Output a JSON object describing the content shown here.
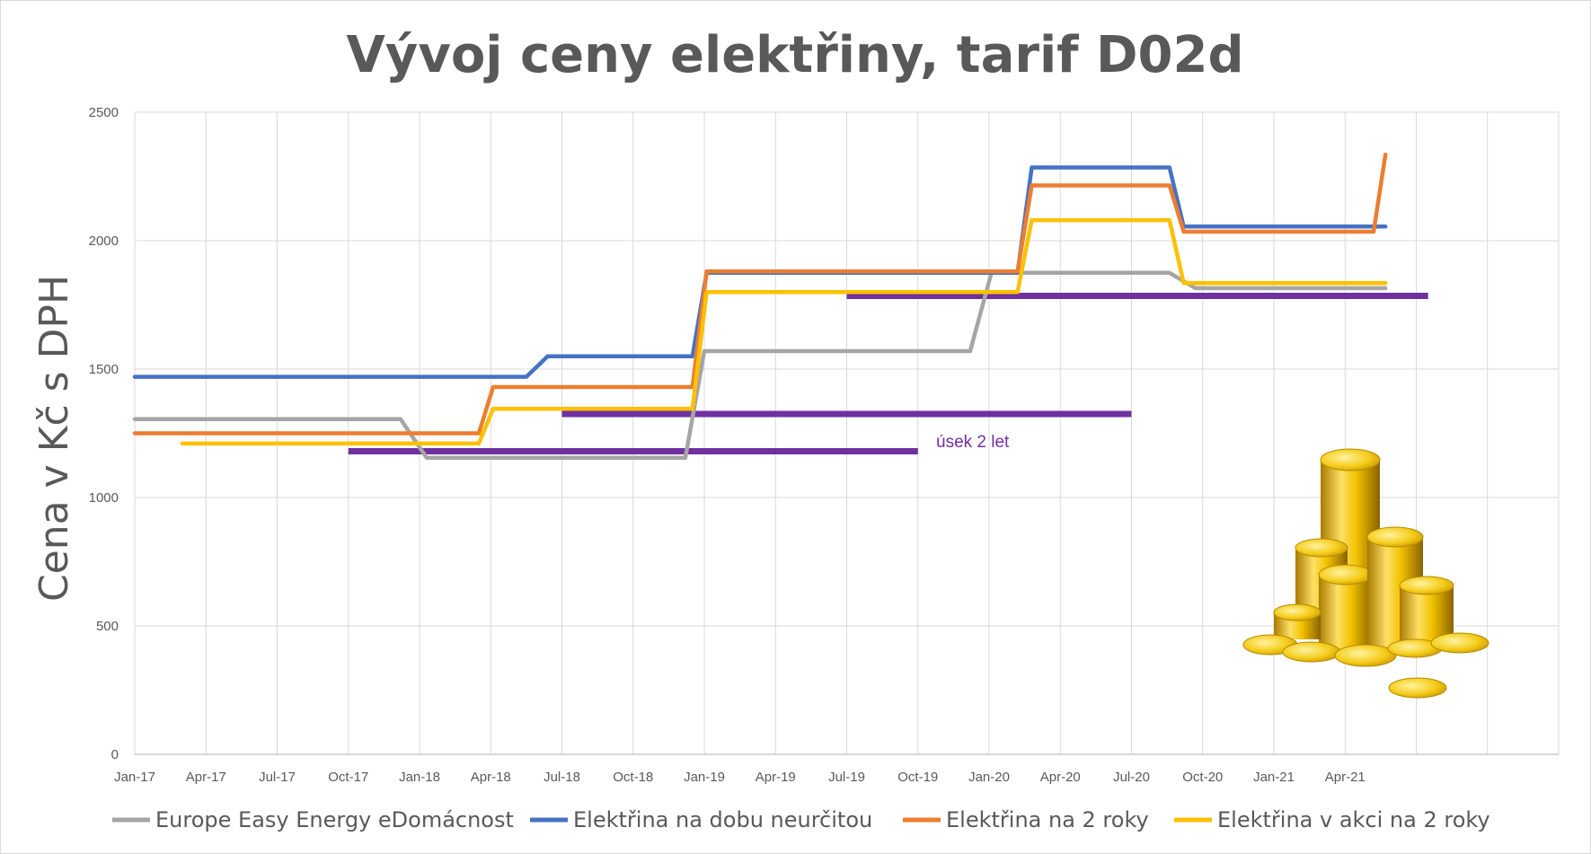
{
  "chart_data": {
    "type": "line",
    "title": "Vývoj ceny elektřiny, tarif D02d",
    "xlabel": "",
    "ylabel": "Cena v Kč s DPH",
    "ylim": [
      0,
      2500
    ],
    "yticks": [
      0,
      500,
      1000,
      1500,
      2000,
      2500
    ],
    "x_range_months": [
      0,
      60
    ],
    "xtick_labels": [
      "Jan-17",
      "Apr-17",
      "Jul-17",
      "Oct-17",
      "Jan-18",
      "Apr-18",
      "Jul-18",
      "Oct-18",
      "Jan-19",
      "Apr-19",
      "Jul-19",
      "Oct-19",
      "Jan-20",
      "Apr-20",
      "Jul-20",
      "Oct-20",
      "Jan-21",
      "Apr-21"
    ],
    "legend_position": "bottom",
    "grid": true,
    "series": [
      {
        "name": "Europe Easy Energy eDomácnost",
        "color": "#a5a5a5",
        "points": [
          [
            0,
            1305
          ],
          [
            11.2,
            1305
          ],
          [
            12.3,
            1155
          ],
          [
            23.2,
            1155
          ],
          [
            24,
            1570
          ],
          [
            35.2,
            1570
          ],
          [
            36.1,
            1875
          ],
          [
            43.6,
            1875
          ],
          [
            44.7,
            1815
          ],
          [
            52.7,
            1815
          ]
        ]
      },
      {
        "name": "Elektřina na dobu neurčitou",
        "color": "#4472c4",
        "points": [
          [
            0,
            1470
          ],
          [
            16.5,
            1470
          ],
          [
            17.4,
            1550
          ],
          [
            23.5,
            1550
          ],
          [
            24.1,
            1875
          ],
          [
            37.2,
            1875
          ],
          [
            37.8,
            2285
          ],
          [
            43.6,
            2285
          ],
          [
            44.2,
            2055
          ],
          [
            52.7,
            2055
          ]
        ]
      },
      {
        "name": "Elektřina na 2 roky",
        "color": "#ed7d31",
        "points": [
          [
            0,
            1250
          ],
          [
            14.5,
            1250
          ],
          [
            15.1,
            1430
          ],
          [
            23.5,
            1430
          ],
          [
            24.1,
            1880
          ],
          [
            37.2,
            1880
          ],
          [
            37.8,
            2215
          ],
          [
            43.6,
            2215
          ],
          [
            44.2,
            2035
          ],
          [
            52.2,
            2035
          ],
          [
            52.7,
            2335
          ]
        ]
      },
      {
        "name": "Elektřina v akci na 2 roky",
        "color": "#ffc000",
        "points": [
          [
            2,
            1210
          ],
          [
            14.5,
            1210
          ],
          [
            15.1,
            1345
          ],
          [
            23.5,
            1345
          ],
          [
            24.1,
            1800
          ],
          [
            37.2,
            1800
          ],
          [
            37.8,
            2080
          ],
          [
            43.6,
            2080
          ],
          [
            44.2,
            1835
          ],
          [
            52.7,
            1835
          ]
        ]
      }
    ],
    "period_bars": {
      "name": "úsek 2 let",
      "color": "#7030a0",
      "bars": [
        {
          "start": 9,
          "end": 33,
          "value": 1180
        },
        {
          "start": 18,
          "end": 42,
          "value": 1325
        },
        {
          "start": 30,
          "end": 54.5,
          "value": 1785
        }
      ]
    },
    "annotation": {
      "text": "úsek 2 let"
    }
  }
}
